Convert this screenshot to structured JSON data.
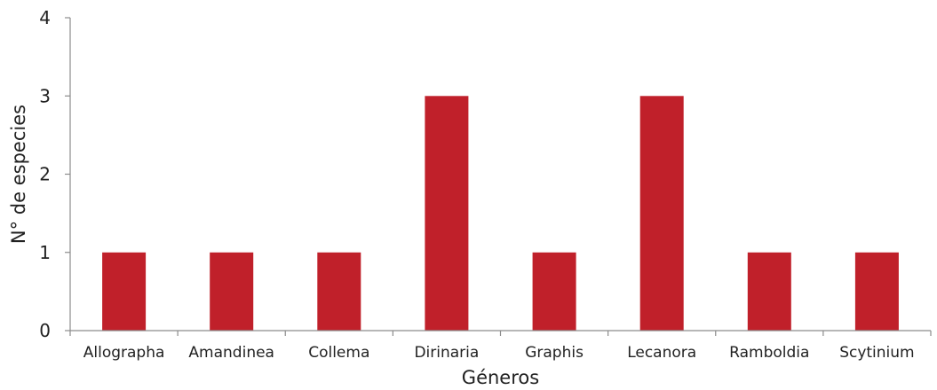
{
  "chart_data": {
    "type": "bar",
    "title": "",
    "xlabel": "Géneros",
    "ylabel": "N° de especies",
    "categories": [
      "Allographa",
      "Amandinea",
      "Collema",
      "Dirinaria",
      "Graphis",
      "Lecanora",
      "Ramboldia",
      "Scytinium"
    ],
    "values": [
      1,
      1,
      1,
      3,
      1,
      3,
      1,
      1
    ],
    "ylim": [
      0,
      4
    ],
    "yticks": [
      "0",
      "1",
      "2",
      "3",
      "4"
    ],
    "grid": false,
    "legend": "none",
    "bar_color": "#c0202a",
    "axis_color": "#8c8c8c"
  }
}
